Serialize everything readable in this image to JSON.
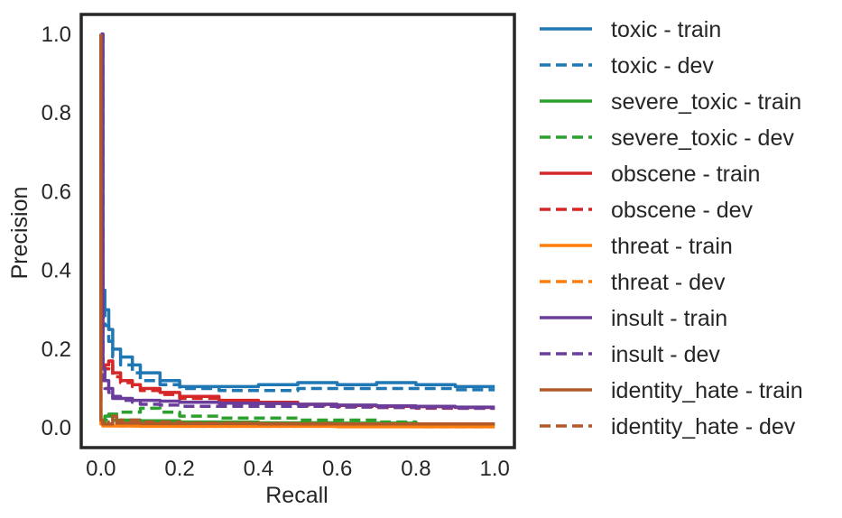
{
  "chart_data": {
    "type": "line",
    "title": "",
    "xlabel": "Recall",
    "ylabel": "Precision",
    "xlim": [
      -0.05,
      1.05
    ],
    "ylim": [
      -0.05,
      1.05
    ],
    "xticks": [
      0.0,
      0.2,
      0.4,
      0.6,
      0.8,
      1.0
    ],
    "yticks": [
      0.0,
      0.2,
      0.4,
      0.6,
      0.8,
      1.0
    ],
    "xtick_labels": [
      "0.0",
      "0.2",
      "0.4",
      "0.6",
      "0.8",
      "1.0"
    ],
    "ytick_labels": [
      "0.0",
      "0.2",
      "0.4",
      "0.6",
      "0.8",
      "1.0"
    ],
    "grid": false,
    "legend_position": "outside-right",
    "series": [
      {
        "name": "toxic - train",
        "color": "#1f77b4",
        "dash": "solid",
        "x": [
          0.0,
          0.005,
          0.01,
          0.02,
          0.03,
          0.05,
          0.08,
          0.1,
          0.15,
          0.2,
          0.3,
          0.4,
          0.5,
          0.6,
          0.7,
          0.8,
          0.9,
          1.0
        ],
        "y": [
          1.0,
          1.0,
          0.35,
          0.3,
          0.25,
          0.2,
          0.18,
          0.16,
          0.14,
          0.12,
          0.105,
          0.105,
          0.11,
          0.115,
          0.11,
          0.115,
          0.11,
          0.105
        ]
      },
      {
        "name": "toxic - dev",
        "color": "#1f77b4",
        "dash": "dashed",
        "x": [
          0.0,
          0.005,
          0.01,
          0.02,
          0.03,
          0.05,
          0.08,
          0.1,
          0.15,
          0.2,
          0.3,
          0.4,
          0.5,
          0.6,
          0.7,
          0.8,
          0.9,
          1.0
        ],
        "y": [
          1.0,
          1.0,
          0.3,
          0.26,
          0.22,
          0.18,
          0.16,
          0.14,
          0.12,
          0.11,
          0.1,
          0.095,
          0.095,
          0.1,
          0.1,
          0.1,
          0.1,
          0.097
        ]
      },
      {
        "name": "severe_toxic - train",
        "color": "#2ca02c",
        "dash": "solid",
        "x": [
          0.0,
          0.005,
          0.01,
          0.03,
          0.05,
          0.1,
          0.2,
          0.4,
          0.6,
          0.8,
          1.0
        ],
        "y": [
          1.0,
          0.02,
          0.015,
          0.03,
          0.02,
          0.02,
          0.018,
          0.015,
          0.013,
          0.012,
          0.01
        ]
      },
      {
        "name": "severe_toxic - dev",
        "color": "#2ca02c",
        "dash": "dashed",
        "x": [
          0.0,
          0.005,
          0.02,
          0.05,
          0.1,
          0.15,
          0.2,
          0.3,
          0.4,
          0.5,
          0.6,
          0.7,
          0.8,
          1.0
        ],
        "y": [
          1.0,
          0.01,
          0.02,
          0.035,
          0.04,
          0.05,
          0.04,
          0.03,
          0.025,
          0.025,
          0.02,
          0.02,
          0.015,
          0.01
        ]
      },
      {
        "name": "obscene - train",
        "color": "#d62728",
        "dash": "solid",
        "x": [
          0.0,
          0.005,
          0.01,
          0.02,
          0.03,
          0.05,
          0.08,
          0.1,
          0.15,
          0.2,
          0.3,
          0.4,
          0.5,
          0.6,
          0.7,
          0.8,
          0.9,
          1.0
        ],
        "y": [
          1.0,
          0.5,
          0.15,
          0.16,
          0.17,
          0.14,
          0.12,
          0.11,
          0.1,
          0.09,
          0.08,
          0.07,
          0.065,
          0.06,
          0.057,
          0.055,
          0.054,
          0.052
        ]
      },
      {
        "name": "obscene - dev",
        "color": "#d62728",
        "dash": "dashed",
        "x": [
          0.0,
          0.005,
          0.01,
          0.02,
          0.03,
          0.05,
          0.08,
          0.1,
          0.15,
          0.2,
          0.3,
          0.4,
          0.5,
          0.6,
          0.7,
          0.8,
          0.9,
          1.0
        ],
        "y": [
          1.0,
          0.45,
          0.14,
          0.15,
          0.16,
          0.13,
          0.115,
          0.105,
          0.095,
          0.085,
          0.075,
          0.068,
          0.063,
          0.058,
          0.055,
          0.052,
          0.05,
          0.05
        ]
      },
      {
        "name": "threat - train",
        "color": "#ff7f0e",
        "dash": "solid",
        "x": [
          0.0,
          0.005,
          0.02,
          0.05,
          0.1,
          0.2,
          0.4,
          0.6,
          0.8,
          1.0
        ],
        "y": [
          1.0,
          0.01,
          0.005,
          0.005,
          0.005,
          0.004,
          0.004,
          0.004,
          0.003,
          0.003
        ]
      },
      {
        "name": "threat - dev",
        "color": "#ff7f0e",
        "dash": "dashed",
        "x": [
          0.0,
          0.005,
          0.02,
          0.05,
          0.1,
          0.2,
          0.4,
          0.6,
          0.8,
          1.0
        ],
        "y": [
          1.0,
          0.01,
          0.008,
          0.006,
          0.005,
          0.005,
          0.004,
          0.004,
          0.004,
          0.003
        ]
      },
      {
        "name": "insult - train",
        "color": "#6a3d9a",
        "dash": "solid",
        "x": [
          0.0,
          0.005,
          0.01,
          0.02,
          0.03,
          0.05,
          0.08,
          0.1,
          0.15,
          0.2,
          0.3,
          0.4,
          0.5,
          0.6,
          0.7,
          0.8,
          0.9,
          1.0
        ],
        "y": [
          1.0,
          1.0,
          0.15,
          0.12,
          0.1,
          0.08,
          0.075,
          0.07,
          0.07,
          0.068,
          0.065,
          0.063,
          0.062,
          0.06,
          0.058,
          0.056,
          0.055,
          0.053
        ]
      },
      {
        "name": "insult - dev",
        "color": "#6a3d9a",
        "dash": "dashed",
        "x": [
          0.0,
          0.005,
          0.01,
          0.02,
          0.03,
          0.05,
          0.08,
          0.1,
          0.15,
          0.2,
          0.3,
          0.4,
          0.5,
          0.6,
          0.7,
          0.8,
          0.9,
          1.0
        ],
        "y": [
          1.0,
          0.9,
          0.12,
          0.1,
          0.09,
          0.075,
          0.07,
          0.065,
          0.06,
          0.058,
          0.055,
          0.055,
          0.055,
          0.055,
          0.053,
          0.052,
          0.051,
          0.05
        ]
      },
      {
        "name": "identity_hate - train",
        "color": "#b15928",
        "dash": "solid",
        "x": [
          0.0,
          0.005,
          0.01,
          0.03,
          0.04,
          0.05,
          0.1,
          0.2,
          0.4,
          0.6,
          0.8,
          1.0
        ],
        "y": [
          1.0,
          0.02,
          0.01,
          0.01,
          0.03,
          0.012,
          0.012,
          0.011,
          0.011,
          0.01,
          0.01,
          0.01
        ]
      },
      {
        "name": "identity_hate - dev",
        "color": "#b15928",
        "dash": "dashed",
        "x": [
          0.0,
          0.005,
          0.02,
          0.05,
          0.1,
          0.15,
          0.2,
          0.4,
          0.6,
          0.8,
          1.0
        ],
        "y": [
          1.0,
          0.02,
          0.01,
          0.015,
          0.02,
          0.015,
          0.015,
          0.012,
          0.011,
          0.01,
          0.01
        ]
      }
    ]
  }
}
